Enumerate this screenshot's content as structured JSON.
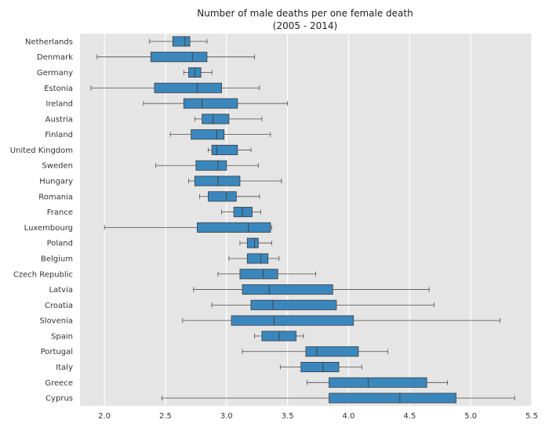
{
  "chart_data": {
    "type": "boxplot",
    "orientation": "horizontal",
    "title": "Number of male deaths per one female death",
    "subtitle": "(2005 - 2014)",
    "xlabel": "",
    "ylabel": "",
    "xlim": [
      1.8,
      5.5
    ],
    "xticks": [
      2.0,
      2.5,
      3.0,
      3.5,
      4.0,
      4.5,
      5.0,
      5.5
    ],
    "xtick_labels": [
      "2.0",
      "2.5",
      "3.0",
      "3.5",
      "4.0",
      "4.5",
      "5.0",
      "5.5"
    ],
    "grid": true,
    "box_color": "#3a87bd",
    "plot_background": "#e5e5e5",
    "categories": [
      "Netherlands",
      "Denmark",
      "Germany",
      "Estonia",
      "Ireland",
      "Austria",
      "Finland",
      "United Kingdom",
      "Sweden",
      "Hungary",
      "Romania",
      "France",
      "Luxembourg",
      "Poland",
      "Belgium",
      "Czech Republic",
      "Latvia",
      "Croatia",
      "Slovenia",
      "Spain",
      "Portugal",
      "Italy",
      "Greece",
      "Cyprus"
    ],
    "boxes": [
      {
        "category": "Netherlands",
        "whisker_low": 2.37,
        "q1": 2.56,
        "median": 2.66,
        "q3": 2.7,
        "whisker_high": 2.84
      },
      {
        "category": "Denmark",
        "whisker_low": 1.94,
        "q1": 2.38,
        "median": 2.72,
        "q3": 2.84,
        "whisker_high": 3.23
      },
      {
        "category": "Germany",
        "whisker_low": 2.65,
        "q1": 2.69,
        "median": 2.74,
        "q3": 2.79,
        "whisker_high": 2.88
      },
      {
        "category": "Estonia",
        "whisker_low": 1.89,
        "q1": 2.41,
        "median": 2.76,
        "q3": 2.96,
        "whisker_high": 3.27
      },
      {
        "category": "Ireland",
        "whisker_low": 2.32,
        "q1": 2.65,
        "median": 2.8,
        "q3": 3.09,
        "whisker_high": 3.5
      },
      {
        "category": "Austria",
        "whisker_low": 2.74,
        "q1": 2.8,
        "median": 2.89,
        "q3": 3.02,
        "whisker_high": 3.29
      },
      {
        "category": "Finland",
        "whisker_low": 2.54,
        "q1": 2.71,
        "median": 2.92,
        "q3": 2.98,
        "whisker_high": 3.36
      },
      {
        "category": "United Kingdom",
        "whisker_low": 2.85,
        "q1": 2.88,
        "median": 2.92,
        "q3": 3.09,
        "whisker_high": 3.2
      },
      {
        "category": "Sweden",
        "whisker_low": 2.42,
        "q1": 2.75,
        "median": 2.93,
        "q3": 3.0,
        "whisker_high": 3.26
      },
      {
        "category": "Hungary",
        "whisker_low": 2.69,
        "q1": 2.74,
        "median": 2.93,
        "q3": 3.11,
        "whisker_high": 3.45
      },
      {
        "category": "Romania",
        "whisker_low": 2.78,
        "q1": 2.85,
        "median": 3.0,
        "q3": 3.08,
        "whisker_high": 3.27
      },
      {
        "category": "France",
        "whisker_low": 2.96,
        "q1": 3.06,
        "median": 3.13,
        "q3": 3.21,
        "whisker_high": 3.28
      },
      {
        "category": "Luxembourg",
        "whisker_low": 2.0,
        "q1": 2.76,
        "median": 3.18,
        "q3": 3.36,
        "whisker_high": 3.37
      },
      {
        "category": "Poland",
        "whisker_low": 3.11,
        "q1": 3.17,
        "median": 3.23,
        "q3": 3.26,
        "whisker_high": 3.37
      },
      {
        "category": "Belgium",
        "whisker_low": 3.02,
        "q1": 3.17,
        "median": 3.28,
        "q3": 3.34,
        "whisker_high": 3.43
      },
      {
        "category": "Czech Republic",
        "whisker_low": 2.93,
        "q1": 3.11,
        "median": 3.3,
        "q3": 3.42,
        "whisker_high": 3.73
      },
      {
        "category": "Latvia",
        "whisker_low": 2.73,
        "q1": 3.13,
        "median": 3.35,
        "q3": 3.87,
        "whisker_high": 4.66
      },
      {
        "category": "Croatia",
        "whisker_low": 2.88,
        "q1": 3.2,
        "median": 3.38,
        "q3": 3.9,
        "whisker_high": 4.7
      },
      {
        "category": "Slovenia",
        "whisker_low": 2.64,
        "q1": 3.04,
        "median": 3.39,
        "q3": 4.04,
        "whisker_high": 5.24
      },
      {
        "category": "Spain",
        "whisker_low": 3.23,
        "q1": 3.29,
        "median": 3.43,
        "q3": 3.57,
        "whisker_high": 3.63
      },
      {
        "category": "Portugal",
        "whisker_low": 3.13,
        "q1": 3.65,
        "median": 3.74,
        "q3": 4.08,
        "whisker_high": 4.32
      },
      {
        "category": "Italy",
        "whisker_low": 3.44,
        "q1": 3.61,
        "median": 3.79,
        "q3": 3.92,
        "whisker_high": 4.11
      },
      {
        "category": "Greece",
        "whisker_low": 3.66,
        "q1": 3.84,
        "median": 4.16,
        "q3": 4.64,
        "whisker_high": 4.81
      },
      {
        "category": "Cyprus",
        "whisker_low": 2.47,
        "q1": 3.84,
        "median": 4.42,
        "q3": 4.88,
        "whisker_high": 5.36
      }
    ]
  }
}
